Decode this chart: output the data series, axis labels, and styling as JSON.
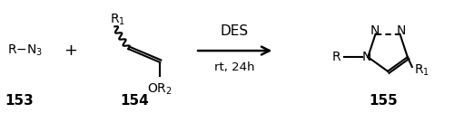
{
  "bg_color": "#ffffff",
  "fig_width": 5.0,
  "fig_height": 1.25,
  "dpi": 100,
  "label_153": "153",
  "label_154": "154",
  "label_155": "155",
  "arrow_label_top": "DES",
  "arrow_label_bottom": "rt, 24h",
  "fs": 10,
  "fs_sub": 7.5,
  "fs_label": 11,
  "lw": 1.5
}
